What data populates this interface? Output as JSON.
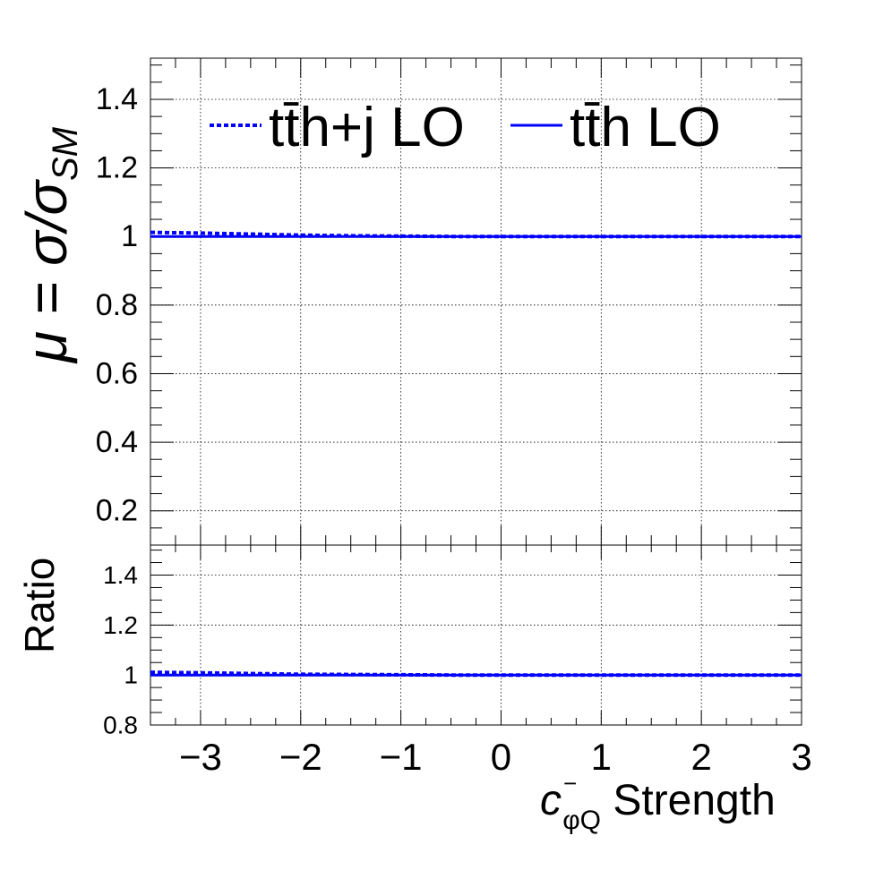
{
  "chart_data": {
    "type": "line",
    "x_range": [
      -3.5,
      3
    ],
    "x_ticks": [
      -3,
      -2,
      -1,
      0,
      1,
      2,
      3
    ],
    "x_tick_labels": [
      "−3",
      "−2",
      "−1",
      "0",
      "1",
      "2",
      "3"
    ],
    "xlabel": {
      "symbol": "c",
      "superscript": "−",
      "subscript": "φQ",
      "suffix": " Strength"
    },
    "grid": true,
    "legend": {
      "placement": "top",
      "entries": [
        {
          "label": "tt̄h+j LO",
          "style": "dotted",
          "color": "#0000ff"
        },
        {
          "label": "tt̄h LO",
          "style": "solid",
          "color": "#0000ff"
        }
      ]
    },
    "panels": [
      {
        "name": "main",
        "ylabel": {
          "prefix": "μ = σ/σ",
          "subscript": "SM"
        },
        "ylim": [
          0.1,
          1.52
        ],
        "y_ticks": [
          0.2,
          0.4,
          0.6,
          0.8,
          1.0,
          1.2,
          1.4
        ],
        "y_tick_labels": [
          "0.2",
          "0.4",
          "0.6",
          "0.8",
          "1",
          "1.2",
          "1.4"
        ],
        "series": [
          {
            "name": "tt̄h+j LO",
            "style": "dotted",
            "color": "#0000ff",
            "x": [
              -3.5,
              -3.0,
              -2.5,
              -2.0,
              -1.5,
              -1.0,
              -0.5,
              0.0,
              0.5,
              1.0,
              1.5,
              2.0,
              2.5,
              3.0
            ],
            "y": [
              1.012,
              1.01,
              1.007,
              1.004,
              1.002,
              1.001,
              1.0,
              1.0,
              1.0,
              1.0,
              1.0,
              1.0,
              1.0,
              1.0
            ]
          },
          {
            "name": "tt̄h LO",
            "style": "solid",
            "color": "#0000ff",
            "x": [
              -3.5,
              3.0
            ],
            "y": [
              1.0,
              1.0
            ]
          }
        ]
      },
      {
        "name": "ratio",
        "ylabel": {
          "prefix": "Ratio",
          "subscript": ""
        },
        "ylim": [
          0.8,
          1.52
        ],
        "y_ticks": [
          0.8,
          1.0,
          1.2,
          1.4
        ],
        "y_tick_labels": [
          "0.8",
          "1",
          "1.2",
          "1.4"
        ],
        "series": [
          {
            "name": "tt̄h+j LO",
            "style": "dotted",
            "color": "#0000ff",
            "x": [
              -3.5,
              -3.0,
              -2.5,
              -2.0,
              -1.5,
              -1.0,
              -0.5,
              0.0,
              0.5,
              1.0,
              1.5,
              2.0,
              2.5,
              3.0
            ],
            "y": [
              1.011,
              1.009,
              1.006,
              1.003,
              1.002,
              1.001,
              1.0,
              1.0,
              1.0,
              1.0,
              1.0,
              1.0,
              1.0,
              1.0
            ]
          },
          {
            "name": "tt̄h LO",
            "style": "solid",
            "color": "#0000ff",
            "x": [
              -3.5,
              3.0
            ],
            "y": [
              1.0,
              1.0
            ]
          }
        ]
      }
    ]
  }
}
